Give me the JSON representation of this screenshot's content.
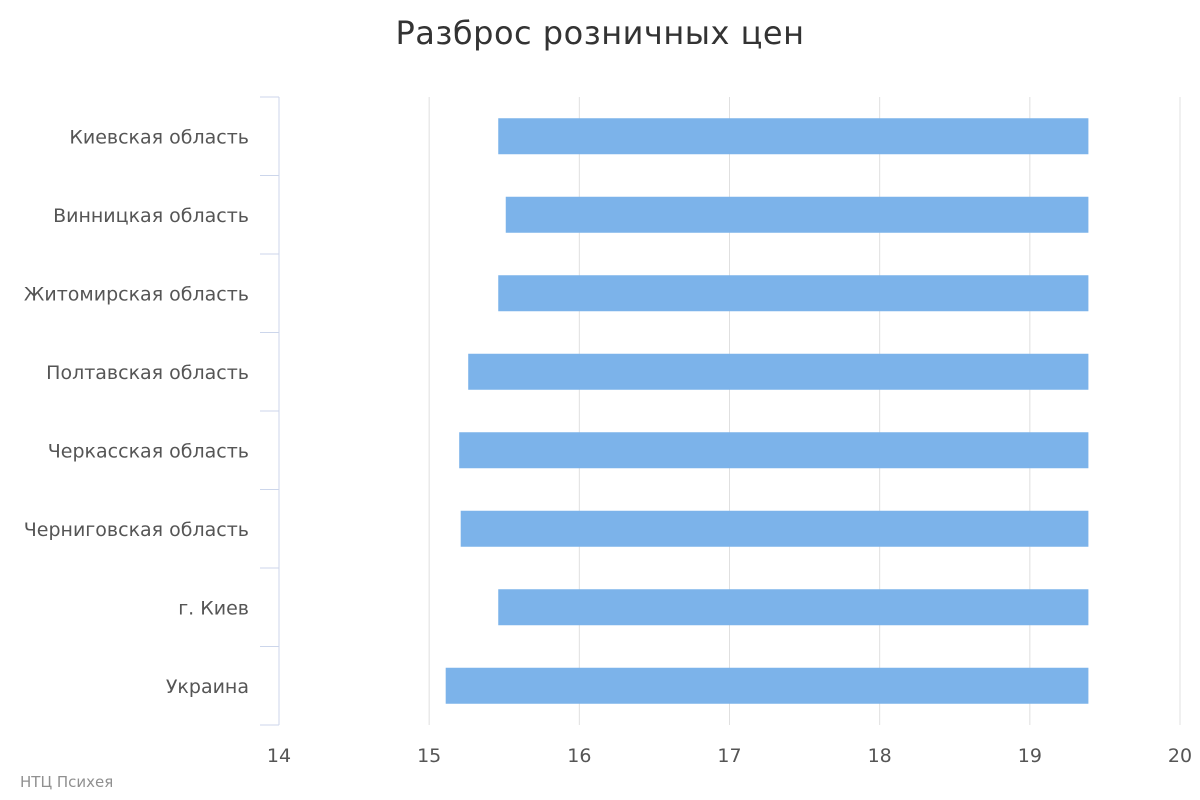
{
  "title": "Разброс розничных цен",
  "credits": "НТЦ Психея",
  "colors": {
    "bar": "#7cb3ea",
    "grid": "#e0e0e0",
    "axis": "#ccd6eb",
    "text": "#555555"
  },
  "chart_data": {
    "type": "bar",
    "orientation": "horizontal",
    "title": "Разброс розничных цен",
    "xlabel": "",
    "ylabel": "",
    "xlim": [
      14,
      20
    ],
    "x_ticks": [
      14,
      15,
      16,
      17,
      18,
      19,
      20
    ],
    "grid": true,
    "categories": [
      "Киевская область",
      "Винницкая область",
      "Житомирская область",
      "Полтавская область",
      "Черкасская область",
      "Черниговская область",
      "г. Киев",
      "Украина"
    ],
    "series": [
      {
        "low": 15.46,
        "high": 19.39
      },
      {
        "low": 15.51,
        "high": 19.39
      },
      {
        "low": 15.46,
        "high": 19.39
      },
      {
        "low": 15.26,
        "high": 19.39
      },
      {
        "low": 15.2,
        "high": 19.39
      },
      {
        "low": 15.21,
        "high": 19.39
      },
      {
        "low": 15.46,
        "high": 19.39
      },
      {
        "low": 15.11,
        "high": 19.39
      }
    ]
  }
}
